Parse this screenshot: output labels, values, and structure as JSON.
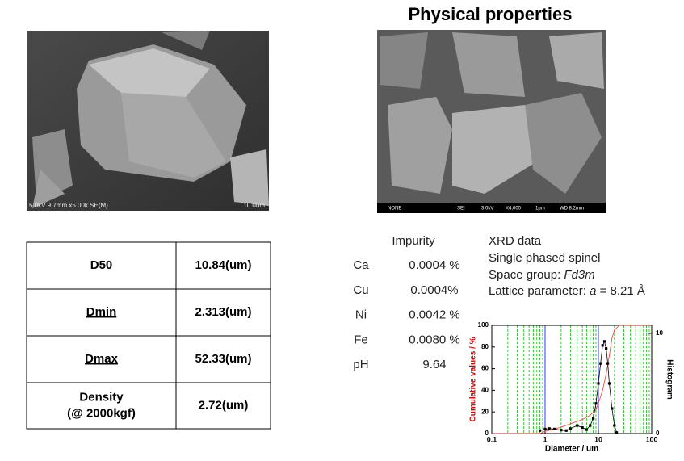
{
  "title": "Physical properties",
  "sem_left": {
    "caption": "5.0kV 9.7mm x5.00k SE(M)",
    "scale": "10.0um"
  },
  "sem_right": {
    "caption": [
      "NONE",
      "SEI",
      "3.0kV",
      "X4,000",
      "1μm",
      "WD 8.2mm"
    ]
  },
  "table": {
    "rows": [
      [
        [
          "D50"
        ],
        [
          "10.84(um)"
        ]
      ],
      [
        [
          "Dmin"
        ],
        [
          "2.313(um)"
        ]
      ],
      [
        [
          "Dmax"
        ],
        [
          "52.33(um)"
        ]
      ],
      [
        [
          "Density",
          "(@ 2000kgf)"
        ],
        [
          "2.72(um)"
        ]
      ]
    ]
  },
  "impurity": {
    "heading": "Impurity",
    "rows": [
      [
        "Ca",
        "0.0004 %"
      ],
      [
        "Cu",
        "0.0004%"
      ],
      [
        "Ni",
        "0.0042 %"
      ],
      [
        "Fe",
        "0.0080 %"
      ],
      [
        "pH",
        "9.64"
      ]
    ]
  },
  "xrd": {
    "heading": "XRD data",
    "phase": "Single phased spinel",
    "space_group": {
      "label": "Space group:",
      "value": "Fd3m"
    },
    "lattice": {
      "label": "Lattice parameter:",
      "symbol": "a",
      "value": "= 8.21 Å"
    }
  },
  "chart_data": {
    "type": "line",
    "x_label": "Diameter / um",
    "y_label": "Cumulative values / %",
    "y2_label": "Histogram",
    "log_x": true,
    "xlim": [
      0.1,
      100
    ],
    "xticks": [
      0.1,
      1,
      10,
      100
    ],
    "ylim": [
      0,
      100
    ],
    "yticks": [
      0,
      20,
      40,
      60,
      80,
      100
    ],
    "y2lim": [
      0,
      10.8
    ],
    "y2ticks": [
      0,
      10
    ],
    "x_grid_color": "#0000ff",
    "x_minor_grid_color": "#00c000",
    "series": [
      {
        "color": "#ff3030",
        "axis": "y",
        "x": [
          0.1,
          0.8,
          1,
          2,
          3,
          5,
          7,
          9,
          10,
          12,
          14,
          16,
          18,
          20,
          25,
          30,
          100
        ],
        "values": [
          0,
          0,
          2,
          6,
          9,
          13,
          17,
          22,
          28,
          40,
          55,
          72,
          88,
          96,
          100,
          100,
          100
        ]
      },
      {
        "color": "#000000",
        "axis": "y2",
        "marker": "square",
        "x": [
          0.8,
          1,
          1.2,
          1.5,
          2,
          2.5,
          3,
          4,
          5,
          6,
          7,
          8,
          9,
          10,
          11,
          12,
          13,
          14,
          15,
          16,
          18,
          20,
          22
        ],
        "values": [
          0.3,
          0.45,
          0.5,
          0.45,
          0.35,
          0.3,
          0.5,
          0.8,
          0.6,
          0.4,
          0.8,
          1.5,
          3,
          5,
          7,
          8.8,
          9.2,
          8.5,
          7,
          5,
          2.5,
          0.8,
          0.1
        ]
      }
    ]
  }
}
